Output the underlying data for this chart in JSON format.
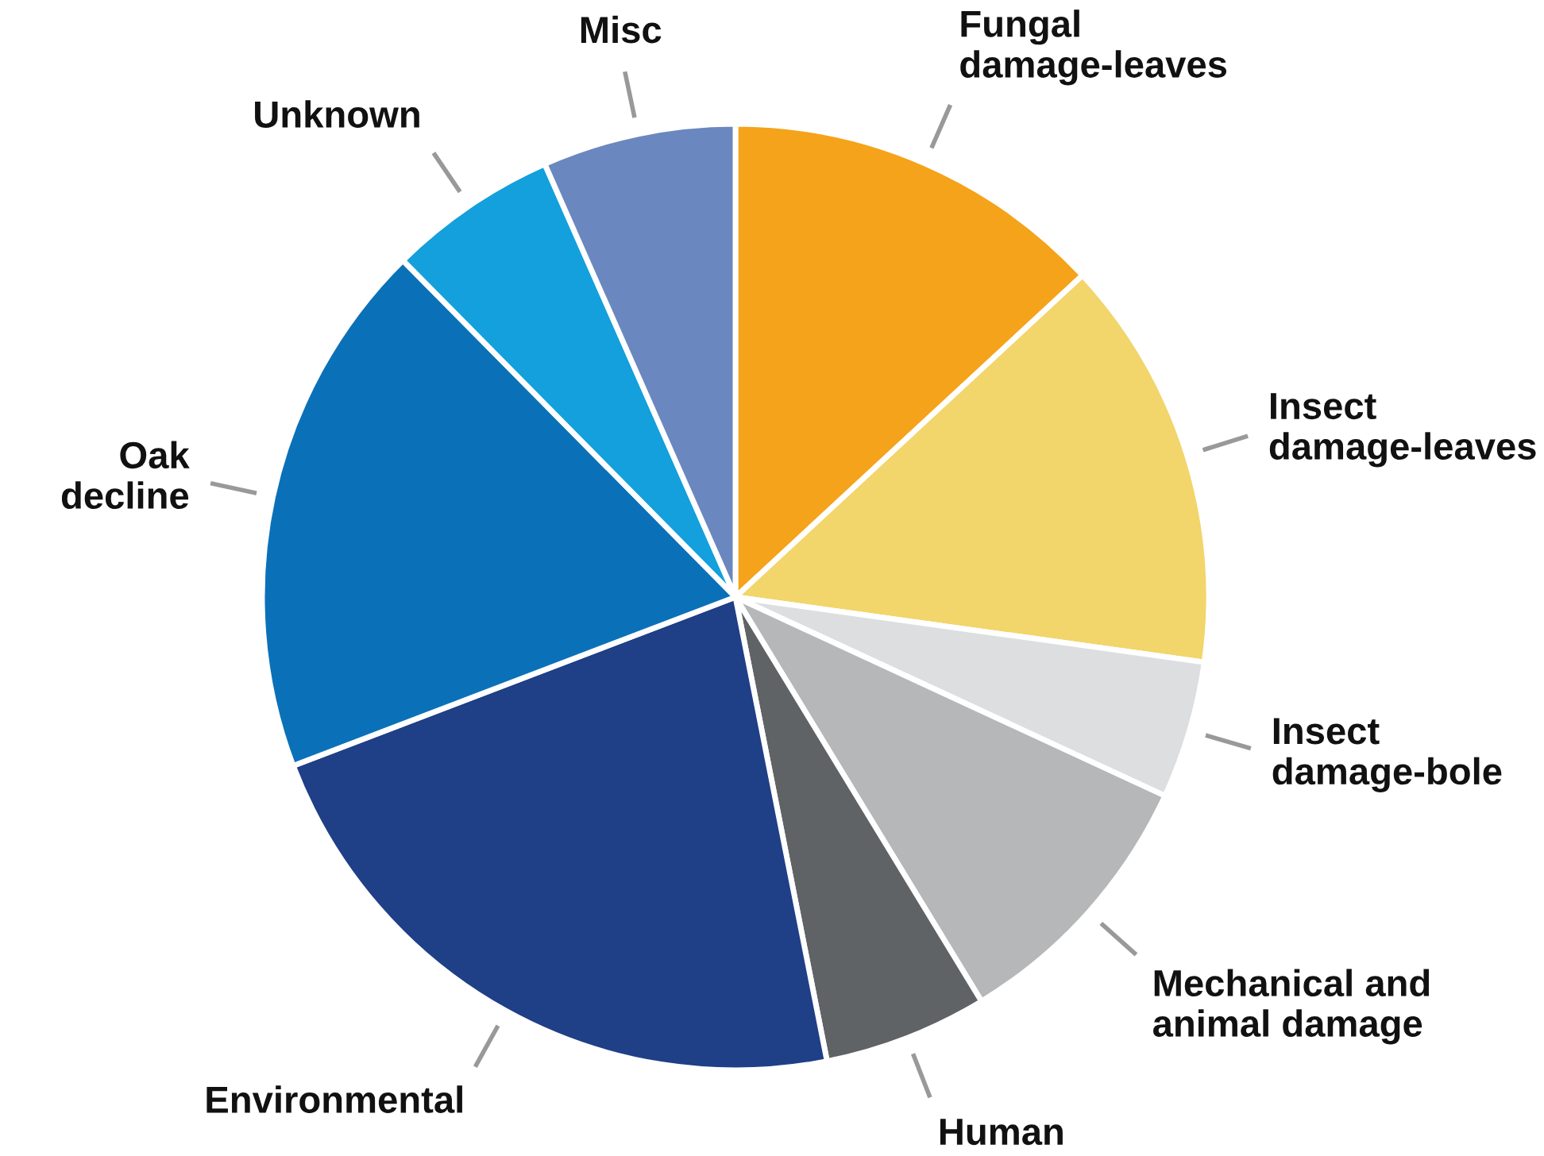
{
  "chart_data": {
    "type": "pie",
    "categories": [
      "Fungal\ndamage-leaves",
      "Insect\ndamage-leaves",
      "Insect\ndamage-bole",
      "Mechanical and\nanimal damage",
      "Human",
      "Environmental",
      "Oak\ndecline",
      "Unknown",
      "Misc"
    ],
    "values": [
      13.1,
      14.1,
      4.7,
      9.4,
      5.6,
      22.3,
      18.4,
      5.8,
      6.6
    ],
    "colors": [
      "#f5a31a",
      "#f2d56b",
      "#dcdee0",
      "#b5b7b9",
      "#5f6366",
      "#1f3f87",
      "#0a71b9",
      "#13a0dc",
      "#6a88bf"
    ]
  }
}
